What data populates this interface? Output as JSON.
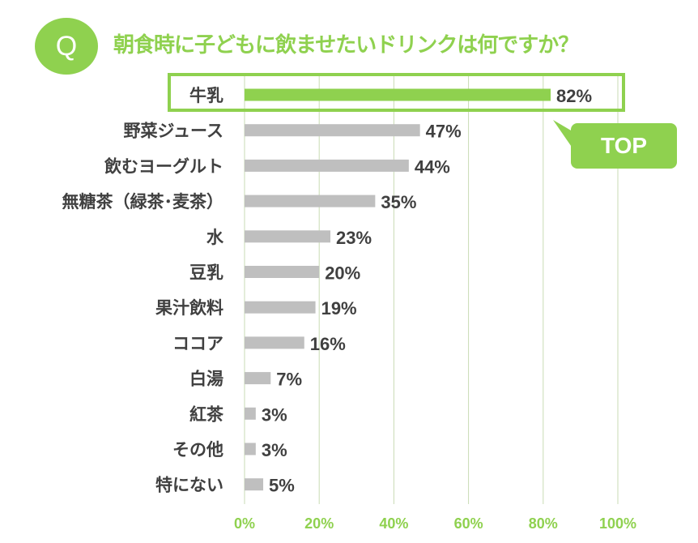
{
  "header": {
    "q_label": "Q",
    "title": "朝食時に子どもに飲ませたいドリンクは何ですか？"
  },
  "callout": {
    "label": "TOP"
  },
  "colors": {
    "accent": "#8fd14f",
    "bar": "#bfbfbf",
    "grid": "#c9dbb4",
    "label": "#404040"
  },
  "chart_data": {
    "type": "bar",
    "orientation": "horizontal",
    "title": "朝食時に子どもに飲ませたいドリンクは何ですか？",
    "categories": [
      "牛乳",
      "野菜ジュース",
      "飲むヨーグルト",
      "無糖茶（緑茶･麦茶）",
      "水",
      "豆乳",
      "果汁飲料",
      "ココア",
      "白湯",
      "紅茶",
      "その他",
      "特にない"
    ],
    "values": [
      82,
      47,
      44,
      35,
      23,
      20,
      19,
      16,
      7,
      3,
      3,
      5
    ],
    "value_labels": [
      "82%",
      "47%",
      "44%",
      "35%",
      "23%",
      "20%",
      "19%",
      "16%",
      "7%",
      "3%",
      "3%",
      "5%"
    ],
    "highlight_index": 0,
    "xlim": [
      0,
      100
    ],
    "x_ticks": [
      "0%",
      "20%",
      "40%",
      "60%",
      "80%",
      "100%"
    ],
    "grid": true,
    "xlabel": "",
    "ylabel": ""
  }
}
